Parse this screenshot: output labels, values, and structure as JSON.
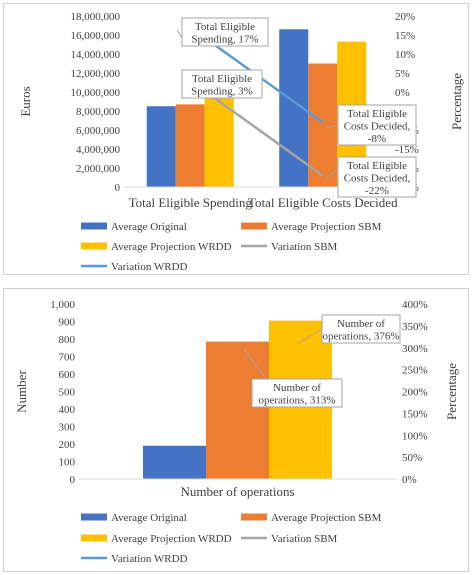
{
  "colors": {
    "average_original": "#4472C4",
    "average_projection_sbm": "#ED7D31",
    "average_projection_wrdd": "#FFC000",
    "variation_sbm": "#A5A5A5",
    "variation_wrdd": "#5B9BD5"
  },
  "chart_data": [
    {
      "type": "bar",
      "categories": [
        "Total Eligible Spending",
        "Total Eligible Costs Decided"
      ],
      "series": [
        {
          "name": "Average Original",
          "axis": "left",
          "kind": "bar",
          "values": [
            8500000,
            16600000
          ]
        },
        {
          "name": "Average Projection SBM",
          "axis": "left",
          "kind": "bar",
          "values": [
            8700000,
            13000000
          ]
        },
        {
          "name": "Average Projection WRDD",
          "axis": "left",
          "kind": "bar",
          "values": [
            9500000,
            15300000
          ]
        },
        {
          "name": "Variation SBM",
          "axis": "right",
          "kind": "line",
          "values": [
            3,
            -22
          ]
        },
        {
          "name": "Variation WRDD",
          "axis": "right",
          "kind": "line",
          "values": [
            17,
            -8
          ]
        }
      ],
      "ylabel": "Euros",
      "y2label": "Percentage",
      "ylim": [
        0,
        18000000
      ],
      "y2lim": [
        -25,
        20
      ],
      "yticks": [
        "18,000,000",
        "16,000,000",
        "14,000,000",
        "12,000,000",
        "10,000,000",
        "8,000,000",
        "6,000,000",
        "4,000,000",
        "2,000,000",
        "0"
      ],
      "y2ticks": [
        "20%",
        "15%",
        "10%",
        "5%",
        "0%",
        "-5%",
        "-10%",
        "-15%",
        "-20%",
        "-25%"
      ],
      "annotations": [
        {
          "lines": [
            "Total Eligible",
            "Spending, 17%"
          ]
        },
        {
          "lines": [
            "Total Eligible",
            "Spending, 3%"
          ]
        },
        {
          "lines": [
            "Total Eligible",
            "Costs Decided,",
            "-8%"
          ]
        },
        {
          "lines": [
            "Total Eligible",
            "Costs Decided,",
            "-22%"
          ]
        }
      ],
      "legend": [
        "Average Original",
        "Average Projection SBM",
        "Average Projection WRDD",
        "Variation SBM",
        "Variation WRDD"
      ],
      "legend_position": "bottom"
    },
    {
      "type": "bar",
      "categories": [
        "Number of operations"
      ],
      "series": [
        {
          "name": "Average Original",
          "axis": "left",
          "kind": "bar",
          "values": [
            190
          ]
        },
        {
          "name": "Average Projection SBM",
          "axis": "left",
          "kind": "bar",
          "values": [
            785
          ]
        },
        {
          "name": "Average Projection WRDD",
          "axis": "left",
          "kind": "bar",
          "values": [
            905
          ]
        },
        {
          "name": "Variation SBM",
          "axis": "right",
          "kind": "line",
          "values": [
            313
          ]
        },
        {
          "name": "Variation WRDD",
          "axis": "right",
          "kind": "line",
          "values": [
            376
          ]
        }
      ],
      "ylabel": "Number",
      "y2label": "Percentage",
      "ylim": [
        0,
        1000
      ],
      "y2lim": [
        0,
        400
      ],
      "yticks": [
        "1,000",
        "900",
        "800",
        "700",
        "600",
        "500",
        "400",
        "300",
        "200",
        "100",
        "0"
      ],
      "y2ticks": [
        "400%",
        "350%",
        "300%",
        "250%",
        "200%",
        "150%",
        "100%",
        "50%",
        "0%"
      ],
      "annotations": [
        {
          "lines": [
            "Number of",
            "operations, 376%"
          ]
        },
        {
          "lines": [
            "Number of",
            "operations, 313%"
          ]
        }
      ],
      "legend": [
        "Average Original",
        "Average Projection SBM",
        "Average Projection WRDD",
        "Variation SBM",
        "Variation WRDD"
      ],
      "legend_position": "bottom"
    }
  ]
}
